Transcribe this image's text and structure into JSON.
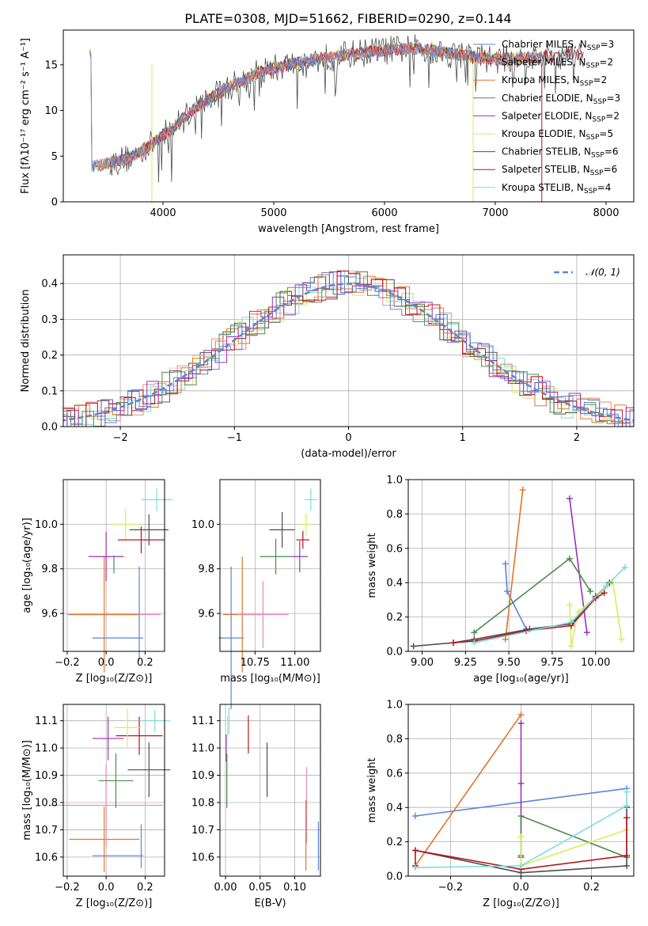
{
  "figure": {
    "title": "PLATE=0308, MJD=51662, FIBERID=0290, z=0.144"
  },
  "colors": {
    "chabrier_miles": "#5b86d6",
    "salpeter_miles": "#ea8a8a",
    "kroupa_miles": "#e0772a",
    "chabrier_elodie": "#4c8a4c",
    "salpeter_elodie": "#9b33b5",
    "kroupa_elodie": "#d6ee5c",
    "chabrier_stelib": "#4d4d4d",
    "salpeter_stelib": "#b2181e",
    "kroupa_stelib": "#7ddbe0",
    "gauss": "#5b86d6",
    "pink": "#e58bbd"
  },
  "chart_data": [
    {
      "type": "line",
      "panel": "spectrum",
      "xlabel": "wavelength [Angstrom, rest frame]",
      "ylabel": "Flux [fλ10⁻¹⁷ erg cm⁻² s⁻¹ A⁻¹]",
      "xlim": [
        3100,
        8250
      ],
      "ylim": [
        0,
        18.8
      ],
      "xticks": [
        "4000",
        "5000",
        "6000",
        "7000",
        "8000"
      ],
      "yticks": [
        "0",
        "5",
        "10",
        "15"
      ],
      "legend_position": "top-right",
      "legend": [
        {
          "label": "Chabrier MILES, N",
          "sub": "SSP",
          "tail": "=3",
          "color": "chabrier_miles"
        },
        {
          "label": "Salpeter MILES, N",
          "sub": "SSP",
          "tail": "=2",
          "color": "salpeter_miles"
        },
        {
          "label": "Kroupa MILES, N",
          "sub": "SSP",
          "tail": "=2",
          "color": "kroupa_miles"
        },
        {
          "label": "Chabrier ELODIE, N",
          "sub": "SSP",
          "tail": "=3",
          "color": "chabrier_elodie"
        },
        {
          "label": "Salpeter ELODIE, N",
          "sub": "SSP",
          "tail": "=2",
          "color": "salpeter_elodie"
        },
        {
          "label": "Kroupa ELODIE, N",
          "sub": "SSP",
          "tail": "=5",
          "color": "kroupa_elodie"
        },
        {
          "label": "Chabrier STELIB, N",
          "sub": "SSP",
          "tail": "=6",
          "color": "chabrier_stelib"
        },
        {
          "label": "Salpeter STELIB, N",
          "sub": "SSP",
          "tail": "=6",
          "color": "salpeter_stelib"
        },
        {
          "label": "Kroupa STELIB, N",
          "sub": "SSP",
          "tail": "=4",
          "color": "kroupa_stelib"
        }
      ],
      "envelope": {
        "x": [
          3350,
          3500,
          3700,
          3900,
          4100,
          4300,
          4600,
          4900,
          5200,
          5500,
          5900,
          6300,
          6600,
          7000,
          7400,
          7800
        ],
        "y": [
          3.8,
          4.2,
          4.8,
          6.3,
          8.2,
          10.4,
          12.6,
          14.3,
          15.2,
          15.8,
          16.5,
          16.8,
          16.2,
          15.6,
          15.8,
          16.2
        ]
      }
    },
    {
      "type": "line",
      "panel": "residual_histogram",
      "xlabel": "(data-model)/error",
      "ylabel": "Normed distribution",
      "xlim": [
        -2.5,
        2.5
      ],
      "ylim": [
        0,
        0.48
      ],
      "xticks": [
        "−2",
        "−1",
        "0",
        "1",
        "2"
      ],
      "yticks": [
        "0.0",
        "0.1",
        "0.2",
        "0.3",
        "0.4"
      ],
      "grid": true,
      "legend_position": "top-right",
      "legend_label": "𝒩(0, 1)",
      "reference": "gaussian(0,1)"
    },
    {
      "type": "scatter",
      "panel": "age_vs_Z",
      "xlabel": "Z [log₁₀(Z/Z⊙)]",
      "ylabel": "age  [log₁₀(age/yr)]",
      "xlim": [
        -0.22,
        0.3
      ],
      "ylim": [
        9.43,
        10.2
      ],
      "xticks": [
        "−0.2",
        "0.0",
        "0.2"
      ],
      "yticks": [
        "9.6",
        "9.8",
        "10.0"
      ],
      "grid": true,
      "points": [
        {
          "series": "chabrier_miles",
          "x": 0.06,
          "xerr": 0.13,
          "y": 9.49,
          "yerr": 0.0
        },
        {
          "series": "chabrier_miles",
          "x": 0.17,
          "xerr": 0.0,
          "y": 9.6,
          "yerr": 0.21
        },
        {
          "series": "pink",
          "x": 0.04,
          "xerr": 0.24,
          "y": 9.595,
          "yerr": 0.0
        },
        {
          "series": "kroupa_miles",
          "x": -0.01,
          "xerr": 0.18,
          "y": 9.595,
          "yerr": 0.26
        },
        {
          "series": "salpeter_elodie",
          "x": 0.0,
          "xerr": 0.09,
          "y": 9.855,
          "yerr": 0.11
        },
        {
          "series": "chabrier_elodie",
          "x": 0.04,
          "xerr": 0.0,
          "y": 9.82,
          "yerr": 0.04
        },
        {
          "series": "kroupa_elodie",
          "x": 0.1,
          "xerr": 0.07,
          "y": 10.0,
          "yerr": 0.07
        },
        {
          "series": "chabrier_stelib",
          "x": 0.22,
          "xerr": 0.1,
          "y": 9.975,
          "yerr": 0.07
        },
        {
          "series": "salpeter_stelib",
          "x": 0.18,
          "xerr": 0.12,
          "y": 9.93,
          "yerr": 0.06
        },
        {
          "series": "kroupa_stelib",
          "x": 0.26,
          "xerr": 0.08,
          "y": 10.11,
          "yerr": 0.05
        }
      ]
    },
    {
      "type": "scatter",
      "panel": "age_vs_mass",
      "xlabel": "mass [log₁₀(M/M⊙)]",
      "ylabel": "",
      "xlim": [
        10.53,
        11.16
      ],
      "ylim": [
        9.43,
        10.2
      ],
      "xticks": [
        "10.75",
        "11.00"
      ],
      "yticks": [
        "9.6",
        "9.8",
        "10.0"
      ],
      "grid": true,
      "points": [
        {
          "series": "chabrier_miles",
          "x": 10.6,
          "xerr": 0.08,
          "y": 9.49,
          "yerr": 0.32
        },
        {
          "series": "kroupa_miles",
          "x": 10.67,
          "xerr": 0.12,
          "y": 9.595,
          "yerr": 0.26
        },
        {
          "series": "pink",
          "x": 10.8,
          "xerr": 0.16,
          "y": 9.595,
          "yerr": 0.15
        },
        {
          "series": "chabrier_elodie",
          "x": 10.88,
          "xerr": 0.1,
          "y": 9.855,
          "yerr": 0.08
        },
        {
          "series": "salpeter_elodie",
          "x": 11.03,
          "xerr": 0.05,
          "y": 9.855,
          "yerr": 0.07
        },
        {
          "series": "chabrier_stelib",
          "x": 10.92,
          "xerr": 0.08,
          "y": 9.975,
          "yerr": 0.08
        },
        {
          "series": "salpeter_stelib",
          "x": 11.05,
          "xerr": 0.04,
          "y": 9.93,
          "yerr": 0.04
        },
        {
          "series": "kroupa_elodie",
          "x": 11.07,
          "xerr": 0.04,
          "y": 10.0,
          "yerr": 0.05
        },
        {
          "series": "kroupa_stelib",
          "x": 11.1,
          "xerr": 0.04,
          "y": 10.11,
          "yerr": 0.05
        }
      ]
    },
    {
      "type": "line",
      "panel": "mass_weight_vs_age",
      "xlabel": "age  [log₁₀(age/yr)]",
      "ylabel": "mass weight",
      "xlim": [
        8.92,
        10.22
      ],
      "ylim": [
        0,
        1.0
      ],
      "xticks": [
        "9.00",
        "9.25",
        "9.50",
        "9.75",
        "10.00"
      ],
      "yticks": [
        "0.0",
        "0.2",
        "0.4",
        "0.6",
        "0.8",
        "1.0"
      ],
      "grid": true,
      "series": [
        {
          "name": "chabrier_miles",
          "x": [
            9.48,
            9.49,
            9.6
          ],
          "y": [
            0.51,
            0.35,
            0.13
          ]
        },
        {
          "name": "kroupa_miles",
          "x": [
            9.48,
            9.58
          ],
          "y": [
            0.07,
            0.94
          ]
        },
        {
          "name": "salpeter_elodie",
          "x": [
            9.85,
            9.95
          ],
          "y": [
            0.89,
            0.11
          ]
        },
        {
          "name": "chabrier_elodie",
          "x": [
            9.3,
            9.85,
            9.97
          ],
          "y": [
            0.11,
            0.54,
            0.35
          ]
        },
        {
          "name": "kroupa_elodie",
          "x": [
            9.85,
            9.86,
            9.9,
            10.1,
            10.15
          ],
          "y": [
            0.27,
            0.03,
            0.23,
            0.4,
            0.07
          ]
        },
        {
          "name": "chabrier_stelib",
          "x": [
            8.95,
            9.18,
            9.3,
            9.62,
            9.86,
            10.0,
            10.08
          ],
          "y": [
            0.03,
            0.05,
            0.07,
            0.13,
            0.16,
            0.32,
            0.4
          ]
        },
        {
          "name": "salpeter_stelib",
          "x": [
            9.18,
            9.3,
            9.6,
            9.86,
            10.0,
            10.05
          ],
          "y": [
            0.05,
            0.06,
            0.12,
            0.15,
            0.31,
            0.34
          ]
        },
        {
          "name": "kroupa_stelib",
          "x": [
            9.3,
            9.86,
            10.06,
            10.17
          ],
          "y": [
            0.05,
            0.17,
            0.38,
            0.49
          ]
        }
      ]
    },
    {
      "type": "scatter",
      "panel": "mass_vs_Z",
      "xlabel": "Z [log₁₀(Z/Z⊙)]",
      "ylabel": "mass [log₁₀(M/M⊙)]",
      "xlim": [
        -0.22,
        0.3
      ],
      "ylim": [
        10.53,
        11.16
      ],
      "xticks": [
        "−0.2",
        "0.0",
        "0.2"
      ],
      "yticks": [
        "10.6",
        "10.7",
        "10.8",
        "10.9",
        "11.0",
        "11.1"
      ],
      "grid": true,
      "points": [
        {
          "series": "chabrier_miles",
          "x": 0.06,
          "xerr": 0.13,
          "y": 10.605,
          "yerr": 0.0
        },
        {
          "series": "chabrier_miles",
          "x": 0.18,
          "xerr": 0.0,
          "y": 10.64,
          "yerr": 0.08
        },
        {
          "series": "kroupa_miles",
          "x": -0.01,
          "xerr": 0.18,
          "y": 10.665,
          "yerr": 0.12
        },
        {
          "series": "pink",
          "x": 0.0,
          "xerr": 0.29,
          "y": 10.79,
          "yerr": 0.15
        },
        {
          "series": "chabrier_elodie",
          "x": 0.05,
          "xerr": 0.09,
          "y": 10.88,
          "yerr": 0.1
        },
        {
          "series": "chabrier_stelib",
          "x": 0.22,
          "xerr": 0.11,
          "y": 10.92,
          "yerr": 0.1
        },
        {
          "series": "salpeter_elodie",
          "x": 0.01,
          "xerr": 0.08,
          "y": 11.035,
          "yerr": 0.08
        },
        {
          "series": "salpeter_stelib",
          "x": 0.17,
          "xerr": 0.12,
          "y": 11.045,
          "yerr": 0.07
        },
        {
          "series": "kroupa_elodie",
          "x": 0.11,
          "xerr": 0.07,
          "y": 11.075,
          "yerr": 0.07
        },
        {
          "series": "kroupa_stelib",
          "x": 0.25,
          "xerr": 0.08,
          "y": 11.1,
          "yerr": 0.04
        }
      ]
    },
    {
      "type": "scatter",
      "panel": "mass_vs_EBV",
      "xlabel": "E(B-V)",
      "ylabel": "",
      "xlim": [
        -0.008,
        0.137
      ],
      "ylim": [
        10.53,
        11.16
      ],
      "xticks": [
        "0.00",
        "0.05",
        "0.10"
      ],
      "yticks": [
        "10.6",
        "10.7",
        "10.8",
        "10.9",
        "11.0",
        "11.1"
      ],
      "grid": true,
      "points": [
        {
          "series": "kroupa_stelib",
          "x": 0.005,
          "yerr": 0.05,
          "y": 11.1
        },
        {
          "series": "kroupa_elodie",
          "x": 0.003,
          "yerr": 0.04,
          "y": 11.08
        },
        {
          "series": "salpeter_elodie",
          "x": 0.001,
          "yerr": 0.05,
          "y": 11.0
        },
        {
          "series": "chabrier_elodie",
          "x": 0.002,
          "yerr": 0.1,
          "y": 10.88
        },
        {
          "series": "salpeter_stelib",
          "x": 0.033,
          "yerr": 0.07,
          "y": 11.05
        },
        {
          "series": "chabrier_stelib",
          "x": 0.06,
          "yerr": 0.1,
          "y": 10.92
        },
        {
          "series": "pink",
          "x": 0.117,
          "yerr": 0.14,
          "y": 10.79
        },
        {
          "series": "kroupa_miles",
          "x": 0.116,
          "yerr": 0.13,
          "y": 10.68
        },
        {
          "series": "chabrier_miles",
          "x": 0.134,
          "yerr": 0.09,
          "y": 10.64
        }
      ]
    },
    {
      "type": "line",
      "panel": "mass_weight_vs_Z",
      "xlabel": "Z [log₁₀(Z/Z⊙)]",
      "ylabel": "mass weight",
      "xlim": [
        -0.32,
        0.32
      ],
      "ylim": [
        0,
        1.0
      ],
      "xticks": [
        "−0.2",
        "0.0",
        "0.2"
      ],
      "yticks": [
        "0.0",
        "0.2",
        "0.4",
        "0.6",
        "0.8",
        "1.0"
      ],
      "grid": true,
      "series": [
        {
          "name": "chabrier_miles",
          "x": [
            -0.3,
            0.3
          ],
          "y": [
            0.35,
            0.51
          ]
        },
        {
          "name": "kroupa_miles",
          "x": [
            -0.3,
            0.0
          ],
          "y": [
            0.06,
            0.94
          ]
        },
        {
          "name": "salpeter_elodie",
          "x": [
            0.0,
            0.0,
            0.0
          ],
          "y": [
            0.89,
            0.54,
            0.11
          ]
        },
        {
          "name": "chabrier_elodie",
          "x": [
            0.0,
            0.0,
            0.3
          ],
          "y": [
            0.12,
            0.35,
            0.11
          ]
        },
        {
          "name": "kroupa_elodie",
          "x": [
            0.0,
            0.0,
            0.0,
            0.3
          ],
          "y": [
            0.23,
            0.04,
            0.06,
            0.27
          ]
        },
        {
          "name": "chabrier_stelib",
          "x": [
            -0.3,
            0.0,
            0.3,
            0.3
          ],
          "y": [
            0.15,
            0.02,
            0.06,
            0.4
          ]
        },
        {
          "name": "salpeter_stelib",
          "x": [
            -0.3,
            -0.3,
            0.0,
            0.3,
            0.3
          ],
          "y": [
            0.06,
            0.15,
            0.04,
            0.12,
            0.34
          ]
        },
        {
          "name": "kroupa_stelib",
          "x": [
            -0.3,
            0.0,
            0.3,
            0.3
          ],
          "y": [
            0.05,
            0.06,
            0.41,
            0.49
          ]
        }
      ]
    }
  ]
}
